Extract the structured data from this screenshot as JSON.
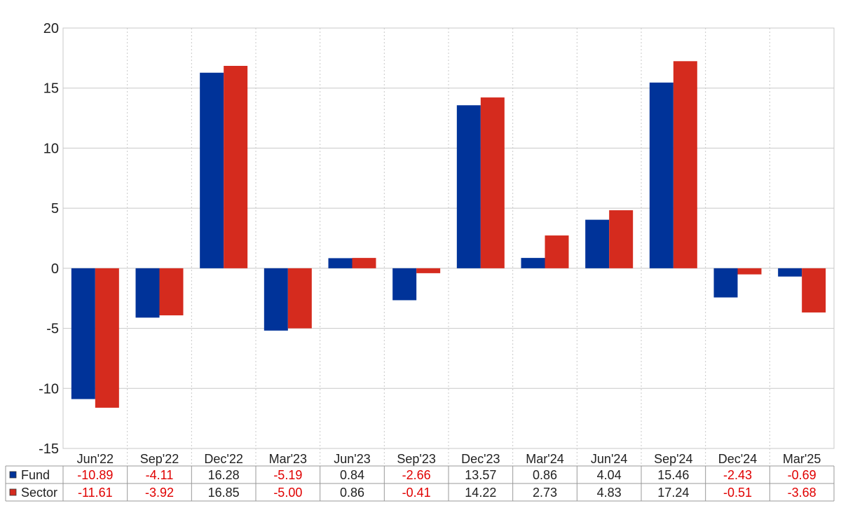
{
  "colors": {
    "fund": "#003399",
    "sector": "#d52b1e",
    "negative_text": "#e00000",
    "positive_text": "#222222",
    "grid": "#c8c8c8",
    "axis_text": "#222222",
    "table_border": "#999999"
  },
  "chart_data": {
    "type": "bar",
    "categories": [
      "Jun'22",
      "Sep'22",
      "Dec'22",
      "Mar'23",
      "Jun'23",
      "Sep'23",
      "Dec'23",
      "Mar'24",
      "Jun'24",
      "Sep'24",
      "Dec'24",
      "Mar'25"
    ],
    "series": [
      {
        "name": "Fund",
        "values": [
          -10.89,
          -4.11,
          16.28,
          -5.19,
          0.84,
          -2.66,
          13.57,
          0.86,
          4.04,
          15.46,
          -2.43,
          -0.69
        ]
      },
      {
        "name": "Sector",
        "values": [
          -11.61,
          -3.92,
          16.85,
          -5.0,
          0.86,
          -0.41,
          14.22,
          2.73,
          4.83,
          17.24,
          -0.51,
          -3.68
        ]
      }
    ],
    "ylim": [
      -15,
      20
    ],
    "yticks": [
      20,
      15,
      10,
      5,
      0,
      -5,
      -10,
      -15
    ],
    "grid": true,
    "legend": "table-below",
    "title": "",
    "xlabel": "",
    "ylabel": ""
  }
}
